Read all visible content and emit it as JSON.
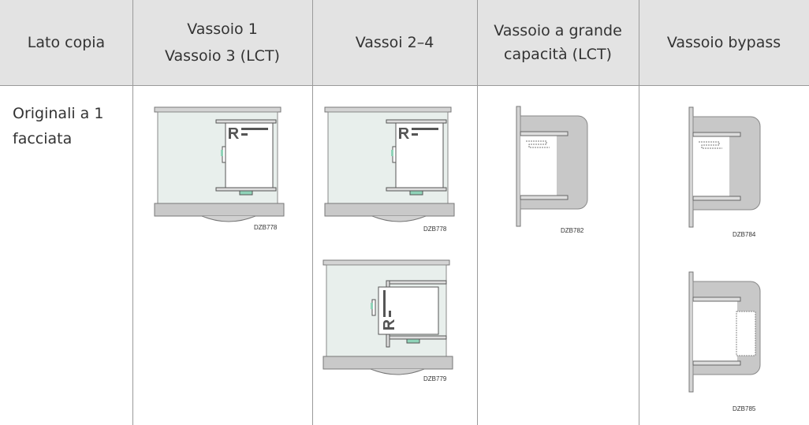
{
  "table": {
    "header": [
      {
        "lines": [
          "Lato copia"
        ]
      },
      {
        "lines": [
          "Vassoio 1",
          "Vassoio 3 (LCT)"
        ]
      },
      {
        "lines": [
          "Vassoi 2–4"
        ]
      },
      {
        "lines": [
          "Vassoio a grande capacità (LCT)"
        ]
      },
      {
        "lines": [
          "Vassoio bypass"
        ]
      }
    ],
    "rows": [
      {
        "label": "Originali a 1 facciata",
        "figures": [
          [
            "DZB778"
          ],
          [
            "DZB778",
            "DZB779"
          ],
          [
            "DZB782"
          ],
          [
            "DZB784",
            "DZB785"
          ]
        ]
      }
    ]
  }
}
